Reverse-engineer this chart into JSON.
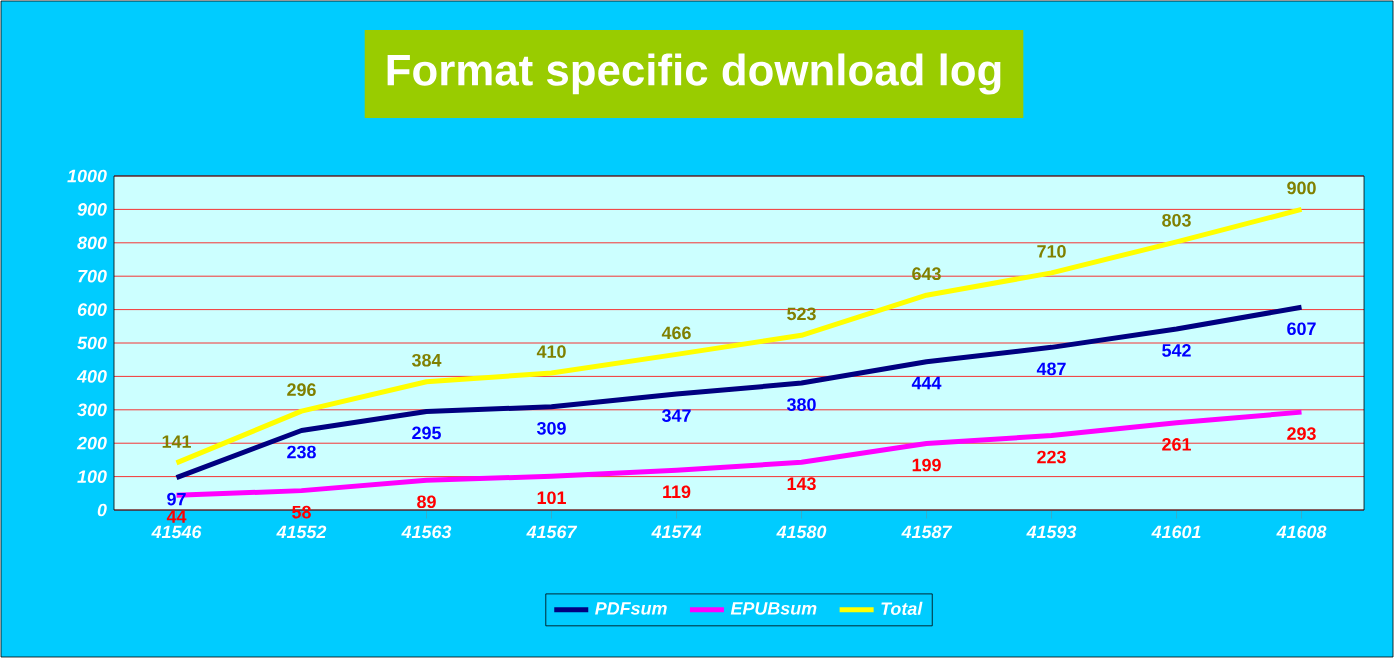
{
  "chart_data": {
    "type": "line",
    "title": "Format specific download log",
    "categories": [
      "41546",
      "41552",
      "41563",
      "41567",
      "41574",
      "41580",
      "41587",
      "41593",
      "41601",
      "41608"
    ],
    "series": [
      {
        "name": "PDFsum",
        "color": "#000080",
        "values": [
          97,
          238,
          295,
          309,
          347,
          380,
          444,
          487,
          542,
          607
        ]
      },
      {
        "name": "EPUBsum",
        "color": "#ff00ff",
        "values": [
          44,
          58,
          89,
          101,
          119,
          143,
          199,
          223,
          261,
          293
        ]
      },
      {
        "name": "Total",
        "color": "#ffff00",
        "values": [
          141,
          296,
          384,
          410,
          466,
          523,
          643,
          710,
          803,
          900
        ]
      }
    ],
    "ylim": [
      0,
      1000
    ],
    "yticks": [
      0,
      100,
      200,
      300,
      400,
      500,
      600,
      700,
      800,
      900,
      1000
    ],
    "grid": "y",
    "legend": "bottom",
    "data_labels": true,
    "marker": "none",
    "line_style": "solid"
  }
}
